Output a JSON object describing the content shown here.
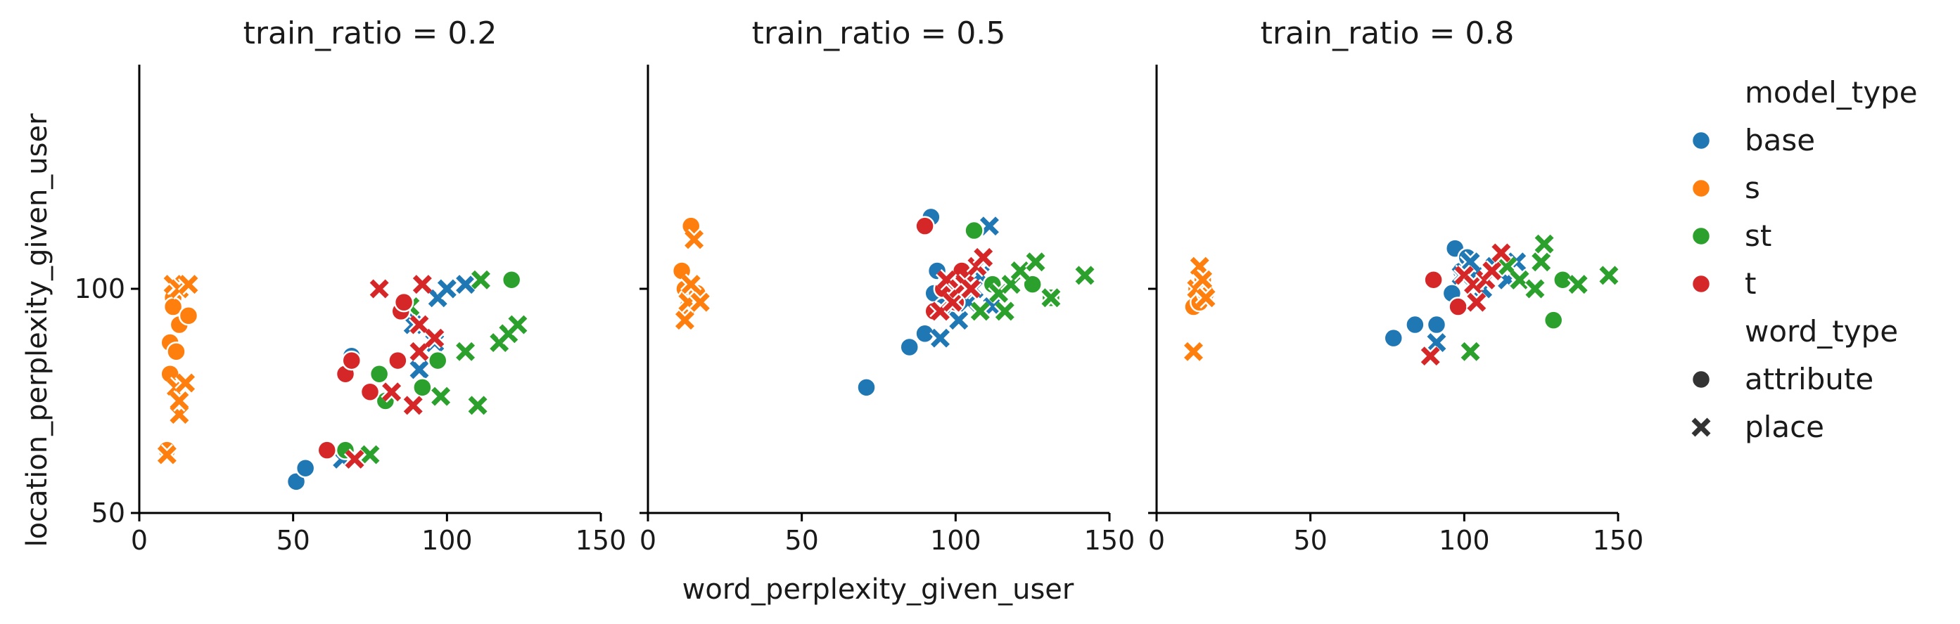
{
  "chart_data": {
    "type": "scatter",
    "xlabel": "word_perplexity_given_user",
    "ylabel": "location_perplexity_given_user",
    "xlim": [
      0,
      150
    ],
    "ylim": [
      50,
      150
    ],
    "xticks": [
      "0",
      "50",
      "100",
      "150"
    ],
    "yticks": [
      "50",
      "100"
    ],
    "grid": false,
    "legend_position": "right",
    "legend": {
      "hue_title": "model_type",
      "hue_entries": [
        {
          "name": "base",
          "color": "#1f77b4"
        },
        {
          "name": "s",
          "color": "#ff7f0e"
        },
        {
          "name": "st",
          "color": "#2ca02c"
        },
        {
          "name": "t",
          "color": "#d62728"
        }
      ],
      "style_title": "word_type",
      "style_entries": [
        {
          "name": "attribute",
          "marker": "circle"
        },
        {
          "name": "place",
          "marker": "x"
        }
      ]
    },
    "panels": [
      {
        "title": "train_ratio = 0.2",
        "points": {
          "base": {
            "attribute": [
              [
                51,
                57
              ],
              [
                54,
                60
              ],
              [
                69,
                85
              ],
              [
                86,
                96
              ],
              [
                88,
                94
              ]
            ],
            "place": [
              [
                66,
                62
              ],
              [
                89,
                92
              ],
              [
                91,
                82
              ],
              [
                96,
                88
              ],
              [
                97,
                98
              ],
              [
                100,
                100
              ],
              [
                106,
                101
              ]
            ]
          },
          "s": {
            "attribute": [
              [
                9,
                64
              ],
              [
                10,
                81
              ],
              [
                10,
                88
              ],
              [
                11,
                98
              ],
              [
                11,
                96
              ],
              [
                12,
                86
              ],
              [
                13,
                92
              ],
              [
                16,
                94
              ]
            ],
            "place": [
              [
                9,
                63
              ],
              [
                11,
                101
              ],
              [
                12,
                78
              ],
              [
                13,
                72
              ],
              [
                13,
                75
              ],
              [
                13,
                100
              ],
              [
                15,
                79
              ],
              [
                16,
                101
              ]
            ]
          },
          "st": {
            "attribute": [
              [
                67,
                64
              ],
              [
                78,
                81
              ],
              [
                80,
                75
              ],
              [
                92,
                78
              ],
              [
                97,
                84
              ],
              [
                121,
                102
              ]
            ],
            "place": [
              [
                75,
                63
              ],
              [
                88,
                96
              ],
              [
                98,
                76
              ],
              [
                106,
                86
              ],
              [
                110,
                74
              ],
              [
                111,
                102
              ],
              [
                117,
                88
              ],
              [
                120,
                90
              ],
              [
                123,
                92
              ]
            ]
          },
          "t": {
            "attribute": [
              [
                61,
                64
              ],
              [
                67,
                81
              ],
              [
                69,
                84
              ],
              [
                75,
                77
              ],
              [
                84,
                84
              ],
              [
                85,
                95
              ],
              [
                86,
                97
              ]
            ],
            "place": [
              [
                70,
                62
              ],
              [
                78,
                100
              ],
              [
                82,
                77
              ],
              [
                89,
                74
              ],
              [
                91,
                86
              ],
              [
                91,
                92
              ],
              [
                92,
                101
              ],
              [
                96,
                89
              ]
            ]
          }
        }
      },
      {
        "title": "train_ratio = 0.5",
        "points": {
          "base": {
            "attribute": [
              [
                71,
                78
              ],
              [
                85,
                87
              ],
              [
                90,
                90
              ],
              [
                92,
                116
              ],
              [
                93,
                99
              ],
              [
                94,
                104
              ],
              [
                96,
                96
              ],
              [
                97,
                101
              ]
            ],
            "place": [
              [
                95,
                89
              ],
              [
                101,
                93
              ],
              [
                104,
                97
              ],
              [
                105,
                103
              ],
              [
                106,
                100
              ],
              [
                108,
                103
              ],
              [
                111,
                114
              ],
              [
                112,
                96
              ]
            ]
          },
          "s": {
            "attribute": [
              [
                11,
                104
              ],
              [
                12,
                100
              ],
              [
                13,
                98
              ],
              [
                13,
                96
              ],
              [
                14,
                114
              ],
              [
                15,
                97
              ],
              [
                16,
                99
              ]
            ],
            "place": [
              [
                12,
                93
              ],
              [
                13,
                97
              ],
              [
                14,
                101
              ],
              [
                15,
                111
              ],
              [
                17,
                97
              ]
            ]
          },
          "st": {
            "attribute": [
              [
                106,
                113
              ],
              [
                112,
                101
              ],
              [
                125,
                101
              ],
              [
                131,
                98
              ]
            ],
            "place": [
              [
                108,
                95
              ],
              [
                114,
                99
              ],
              [
                116,
                95
              ],
              [
                118,
                101
              ],
              [
                121,
                104
              ],
              [
                126,
                106
              ],
              [
                131,
                98
              ],
              [
                142,
                103
              ]
            ]
          },
          "t": {
            "attribute": [
              [
                90,
                114
              ],
              [
                93,
                95
              ],
              [
                96,
                100
              ],
              [
                100,
                97
              ],
              [
                102,
                104
              ]
            ],
            "place": [
              [
                95,
                95
              ],
              [
                97,
                102
              ],
              [
                99,
                97
              ],
              [
                101,
                100
              ],
              [
                103,
                101
              ],
              [
                105,
                100
              ],
              [
                107,
                105
              ],
              [
                109,
                107
              ]
            ]
          }
        }
      },
      {
        "title": "train_ratio = 0.8",
        "points": {
          "base": {
            "attribute": [
              [
                77,
                89
              ],
              [
                84,
                92
              ],
              [
                91,
                92
              ],
              [
                96,
                99
              ],
              [
                97,
                109
              ],
              [
                99,
                104
              ],
              [
                101,
                107
              ],
              [
                103,
                104
              ]
            ],
            "place": [
              [
                91,
                88
              ],
              [
                99,
                103
              ],
              [
                102,
                106
              ],
              [
                106,
                100
              ],
              [
                110,
                105
              ],
              [
                114,
                102
              ],
              [
                117,
                106
              ]
            ]
          },
          "s": {
            "attribute": [
              [
                12,
                96
              ],
              [
                13,
                100
              ],
              [
                14,
                97
              ],
              [
                15,
                102
              ],
              [
                16,
                99
              ]
            ],
            "place": [
              [
                12,
                86
              ],
              [
                13,
                100
              ],
              [
                14,
                105
              ],
              [
                15,
                102
              ],
              [
                16,
                98
              ]
            ]
          },
          "st": {
            "attribute": [
              [
                129,
                93
              ],
              [
                132,
                102
              ]
            ],
            "place": [
              [
                102,
                86
              ],
              [
                114,
                105
              ],
              [
                118,
                102
              ],
              [
                123,
                100
              ],
              [
                125,
                106
              ],
              [
                126,
                110
              ],
              [
                137,
                101
              ],
              [
                147,
                103
              ]
            ]
          },
          "t": {
            "attribute": [
              [
                90,
                102
              ],
              [
                98,
                96
              ]
            ],
            "place": [
              [
                89,
                85
              ],
              [
                100,
                103
              ],
              [
                103,
                101
              ],
              [
                104,
                97
              ],
              [
                107,
                102
              ],
              [
                109,
                104
              ],
              [
                112,
                108
              ]
            ]
          }
        }
      }
    ]
  }
}
